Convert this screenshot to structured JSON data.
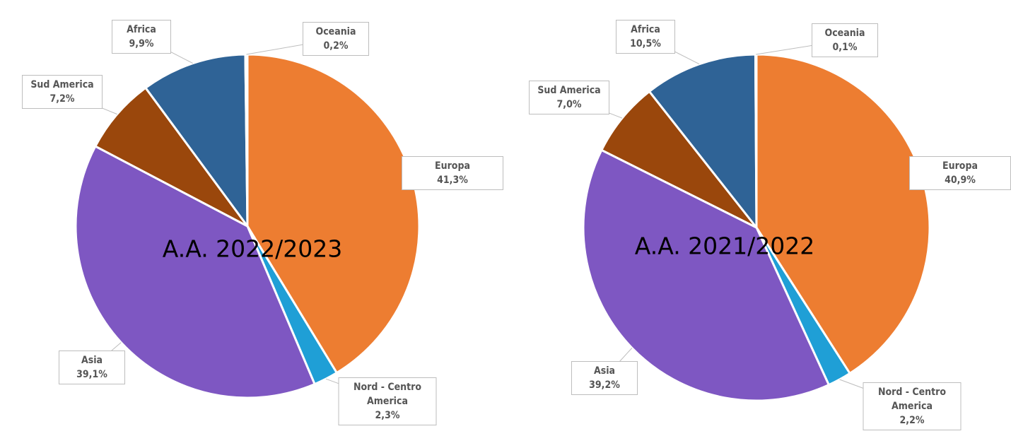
{
  "chart_data": [
    {
      "type": "pie",
      "title": "A.A. 2022/2023",
      "categories": [
        "Europa",
        "Nord - Centro America",
        "Asia",
        "Sud America",
        "Africa",
        "Oceania"
      ],
      "values": [
        41.3,
        2.3,
        39.1,
        7.2,
        9.9,
        0.2
      ],
      "value_labels": [
        "41,3%",
        "2,3%",
        "39,1%",
        "7,2%",
        "9,9%",
        "0,2%"
      ],
      "colors": [
        "#ed7d31",
        "#1f9fd6",
        "#7e57c2",
        "#9a470c",
        "#2f6396",
        "#bcd3e8"
      ]
    },
    {
      "type": "pie",
      "title": "A.A. 2021/2022",
      "categories": [
        "Europa",
        "Nord - Centro America",
        "Asia",
        "Sud America",
        "Africa",
        "Oceania"
      ],
      "values": [
        40.9,
        2.2,
        39.2,
        7.0,
        10.5,
        0.1
      ],
      "value_labels": [
        "40,9%",
        "2,2%",
        "39,2%",
        "7,0%",
        "10,5%",
        "0,1%"
      ],
      "colors": [
        "#ed7d31",
        "#1f9fd6",
        "#7e57c2",
        "#9a470c",
        "#2f6396",
        "#bcd3e8"
      ]
    }
  ]
}
